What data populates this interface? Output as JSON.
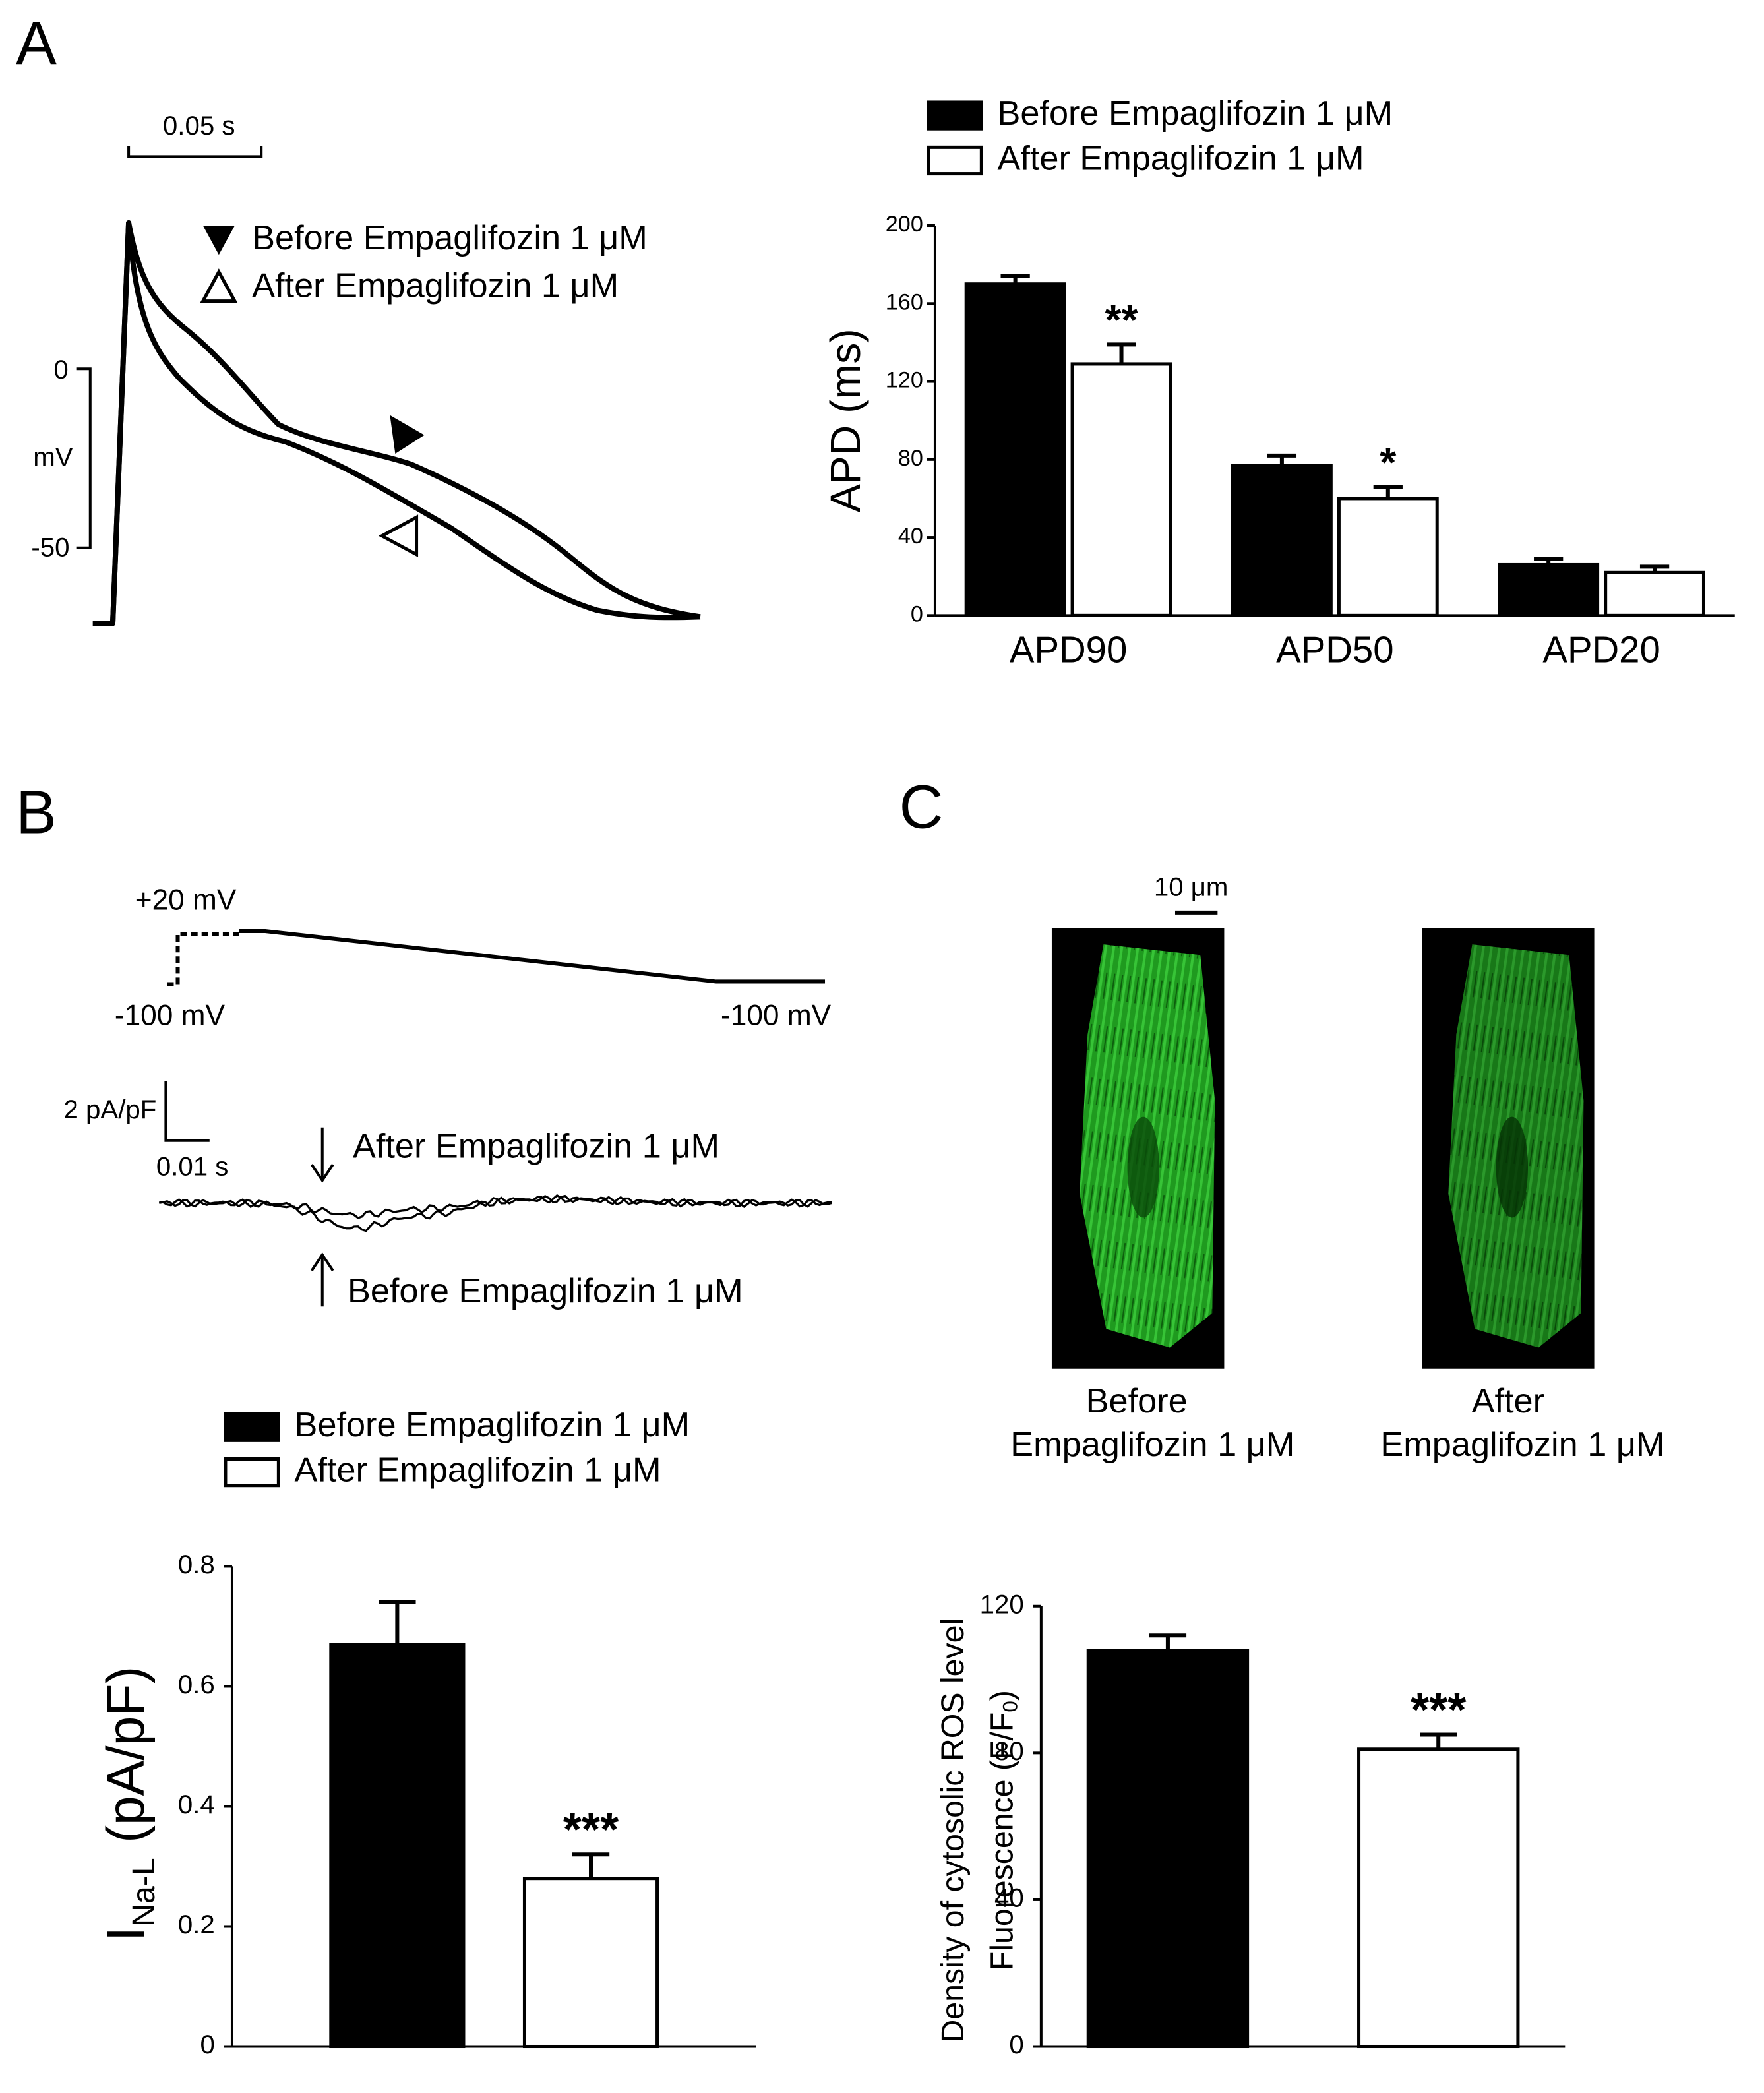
{
  "panel_labels": [
    "A",
    "B",
    "C"
  ],
  "action_potential": {
    "scale_bar": "0.05 s",
    "legend": [
      "Before Empaglifozin 1 μM",
      "After Empaglifozin 1 μM"
    ],
    "voltage_labels": [
      "0",
      "mV",
      "-50"
    ]
  },
  "late_sodium_current": {
    "protocol_labels": [
      "+20 mV",
      "-100 mV",
      "-100 mV"
    ],
    "scale_bar_y": "2 pA/pF",
    "scale_bar_x": "0.01 s",
    "trace_labels": [
      "After Empaglifozin 1 μM",
      "Before Empaglifozin 1 μM"
    ]
  },
  "ros_imaging": {
    "scale_bar": "10 μm",
    "captions": [
      [
        "Before",
        "Empaglifozin 1 μM"
      ],
      [
        "After",
        "Empaglifozin 1 μM"
      ]
    ]
  },
  "chart_data": [
    {
      "type": "bar",
      "y_label": "APD (ms)",
      "categories": [
        "APD90",
        "APD50",
        "APD20"
      ],
      "series": [
        {
          "name": "Before Empaglifozin 1 μM",
          "color": "#000000",
          "values": [
            170,
            77,
            26
          ],
          "errors": [
            4,
            5,
            3
          ]
        },
        {
          "name": "After Empaglifozin 1 μM",
          "color": "#ffffff",
          "values": [
            129,
            60,
            22
          ],
          "errors": [
            10,
            6,
            3
          ],
          "annotations": [
            "**",
            "*",
            null
          ]
        }
      ],
      "ylim": [
        0,
        200
      ],
      "yticks": [
        0,
        40,
        80,
        120,
        160,
        200
      ]
    },
    {
      "type": "bar",
      "y_label_parts": [
        "I",
        "Na-L",
        " (pA/pF)"
      ],
      "series": [
        {
          "name": "Before Empaglifozin 1 μM",
          "color": "#000000",
          "values": [
            0.67
          ],
          "errors": [
            0.07
          ]
        },
        {
          "name": "After Empaglifozin 1 μM",
          "color": "#ffffff",
          "values": [
            0.28
          ],
          "errors": [
            0.04
          ],
          "annotations": [
            "***"
          ]
        }
      ],
      "ylim": [
        0,
        0.8
      ],
      "yticks": [
        0,
        0.2,
        0.4,
        0.6,
        0.8
      ]
    },
    {
      "type": "bar",
      "y_label_line1": "Density of cytosolic ROS level",
      "y_label_line2_parts": [
        "Fluorescence (F/F",
        "0",
        ")"
      ],
      "series": [
        {
          "color": "#000000",
          "values": [
            108
          ],
          "errors": [
            4
          ]
        },
        {
          "color": "#ffffff",
          "values": [
            81
          ],
          "errors": [
            4
          ],
          "annotations": [
            "***"
          ]
        }
      ],
      "ylim": [
        0,
        120
      ],
      "yticks": [
        0,
        40,
        80,
        120
      ]
    }
  ]
}
